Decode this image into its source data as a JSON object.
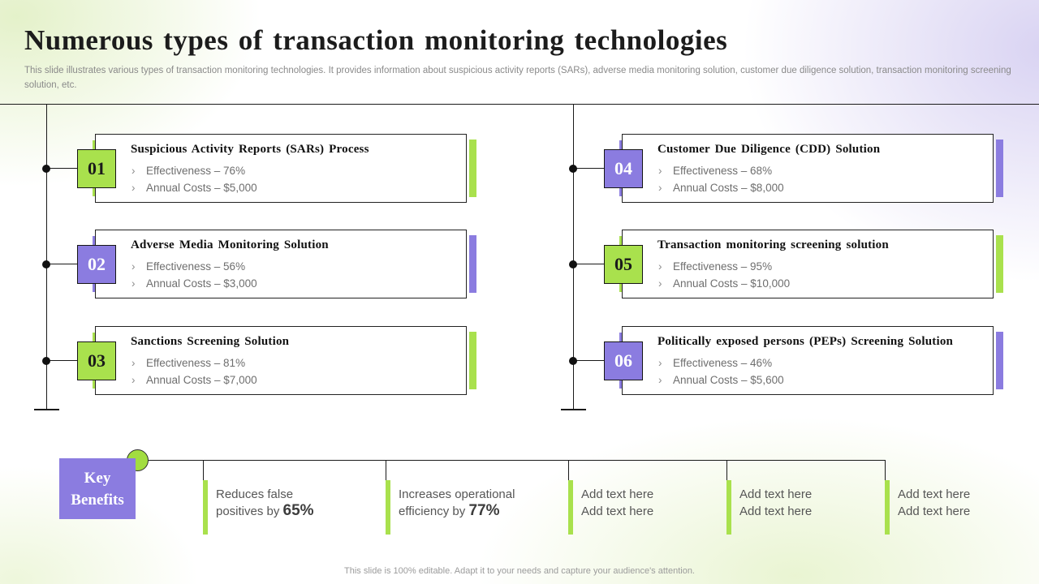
{
  "slide": {
    "title": "Numerous types of transaction monitoring technologies",
    "subtitle": "This slide illustrates various types of transaction monitoring technologies. It provides information about suspicious activity reports (SARs), adverse media monitoring solution, customer due diligence solution, transaction monitoring screening solution, etc.",
    "footer": "This slide is 100% editable. Adapt it to your needs and capture your audience's attention."
  },
  "ui": {
    "bullet_marker": "›"
  },
  "colors": {
    "green": "#a9e14d",
    "purple": "#8b7ce0",
    "green_text": "#1b1b1b",
    "purple_text": "#ffffff",
    "circle_green": "#a2dd40",
    "line": "#1a1a1a"
  },
  "cards": [
    {
      "number": "01",
      "color": "green",
      "title": "Suspicious Activity Reports (SARs) Process",
      "bullets": [
        "Effectiveness – 76%",
        "Annual Costs – $5,000"
      ]
    },
    {
      "number": "02",
      "color": "purple",
      "title": "Adverse Media Monitoring Solution",
      "bullets": [
        "Effectiveness – 56%",
        "Annual Costs – $3,000"
      ]
    },
    {
      "number": "03",
      "color": "green",
      "title": "Sanctions Screening Solution",
      "bullets": [
        "Effectiveness – 81%",
        "Annual Costs – $7,000"
      ]
    },
    {
      "number": "04",
      "color": "purple",
      "title": "Customer Due Diligence (CDD) Solution",
      "bullets": [
        "Effectiveness – 68%",
        "Annual Costs – $8,000"
      ]
    },
    {
      "number": "05",
      "color": "green",
      "title": "Transaction monitoring  screening solution",
      "bullets": [
        "Effectiveness – 95%",
        "Annual Costs – $10,000"
      ]
    },
    {
      "number": "06",
      "color": "purple",
      "title": "Politically  exposed persons (PEPs) Screening Solution",
      "bullets": [
        "Effectiveness – 46%",
        "Annual Costs – $5,600"
      ]
    }
  ],
  "key_benefits": {
    "label": "Key Benefits",
    "items": [
      {
        "line1": "Reduces false",
        "line2": "positives by ",
        "highlight": "65%"
      },
      {
        "line1": "Increases operational",
        "line2": "efficiency by ",
        "highlight": "77%"
      },
      {
        "line1": "Add text here",
        "line2": "Add text here",
        "highlight": ""
      },
      {
        "line1": "Add text here",
        "line2": "Add text here",
        "highlight": ""
      },
      {
        "line1": "Add text here",
        "line2": "Add text here",
        "highlight": ""
      }
    ]
  }
}
